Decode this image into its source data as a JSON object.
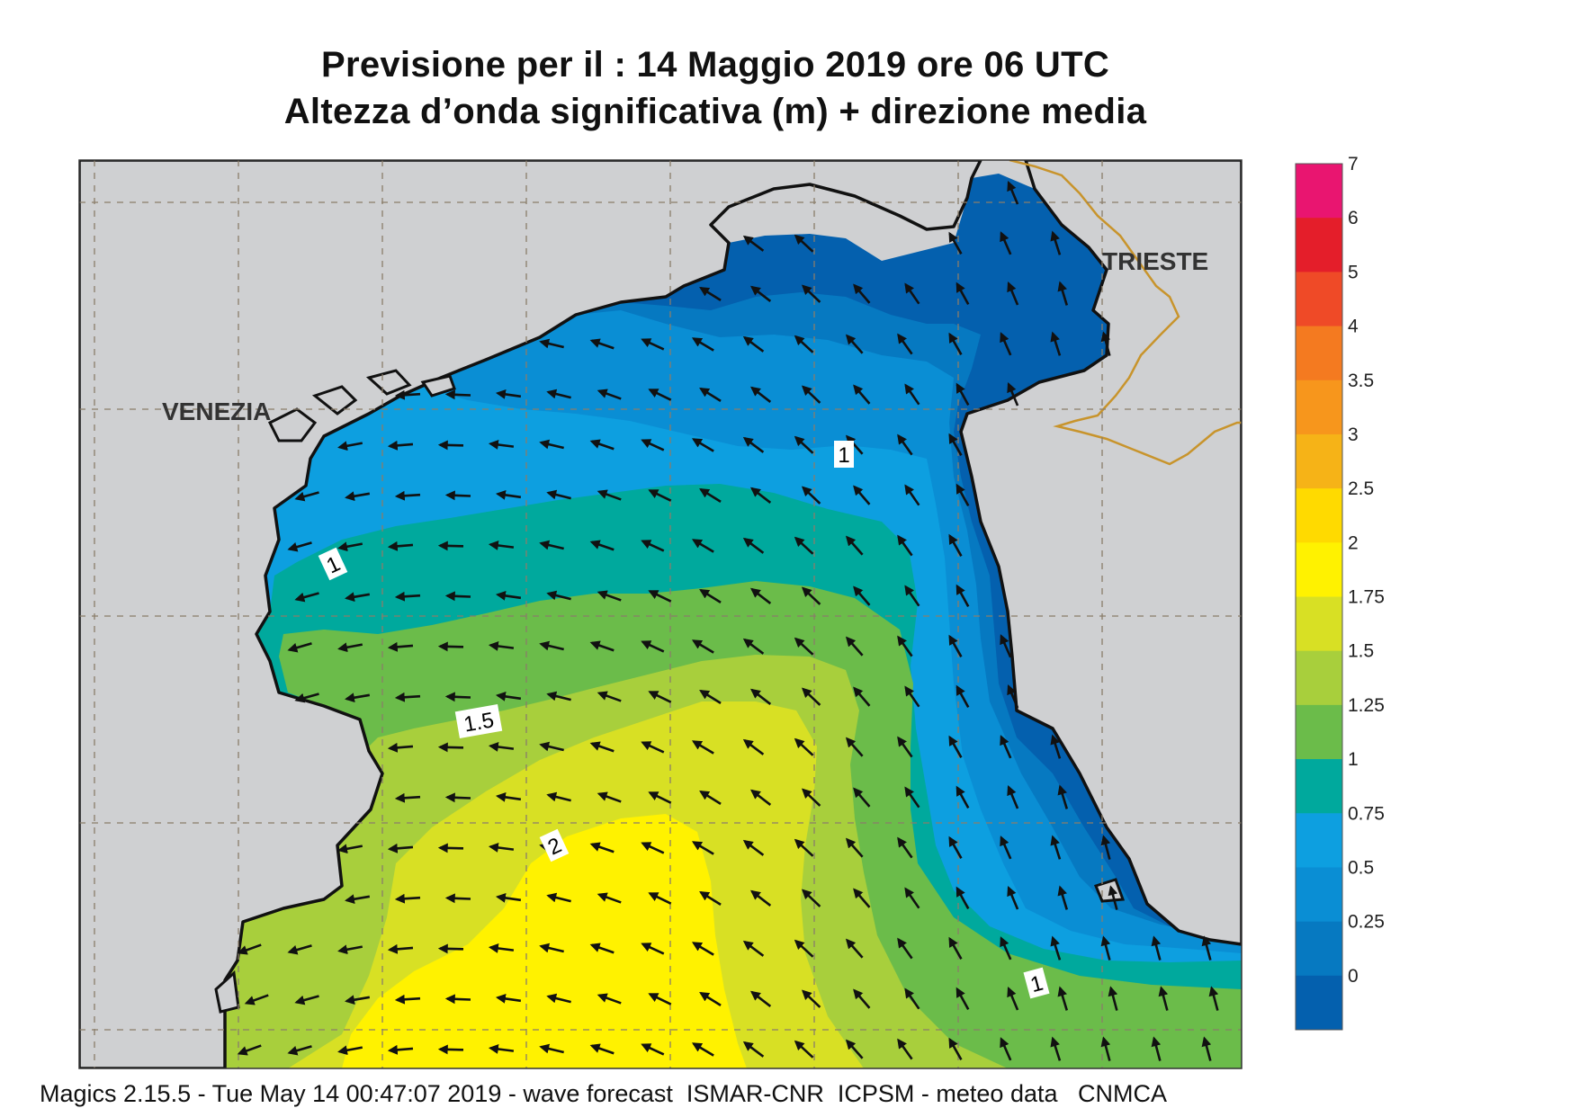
{
  "title": {
    "line1": "Previsione per il  :  14   Maggio  2019   ore 06 UTC",
    "line2": "Altezza d’onda significativa (m) + direzione media"
  },
  "map": {
    "cities": [
      {
        "name": "VENEZIA"
      },
      {
        "name": "TRIESTE"
      }
    ],
    "contour_labels": [
      "1",
      "1",
      "1.5",
      "2",
      "1"
    ],
    "colors": {
      "land": "#cfd0d2",
      "coast": "#111111",
      "border": "#c8942c",
      "graticule": "#8a7d6a"
    }
  },
  "legend": {
    "levels": [
      "7",
      "6",
      "5",
      "4",
      "3.5",
      "3",
      "2.5",
      "2",
      "1.75",
      "1.5",
      "1.25",
      "1",
      "0.75",
      "0.5",
      "0.25",
      "0"
    ],
    "colors": [
      "#e91570",
      "#e41e2a",
      "#ef4a27",
      "#f47a20",
      "#f7961c",
      "#f6b317",
      "#ffda00",
      "#fff200",
      "#d8e024",
      "#a8cf3c",
      "#6bbc4a",
      "#00a99d",
      "#0d9fe0",
      "#0a8ed4",
      "#0679c1",
      "#0460ae"
    ]
  },
  "footer": "Magics 2.15.5 - Tue May 14 00:47:07 2019 - wave forecast  ISMAR-CNR  ICPSM - meteo data   CNMCA"
}
